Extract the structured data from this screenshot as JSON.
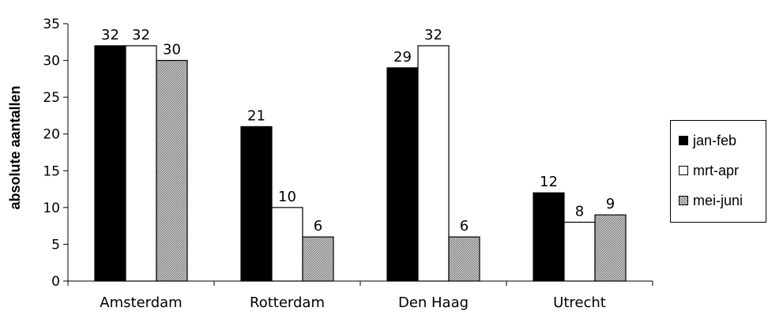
{
  "chart_data": {
    "type": "bar",
    "categories": [
      "Amsterdam",
      "Rotterdam",
      "Den Haag",
      "Utrecht"
    ],
    "series": [
      {
        "name": "jan-feb",
        "values": [
          32,
          21,
          29,
          12
        ],
        "fill": "#000000",
        "pattern": "solid"
      },
      {
        "name": "mrt-apr",
        "values": [
          32,
          10,
          32,
          8
        ],
        "fill": "#ffffff",
        "pattern": "solid"
      },
      {
        "name": "mei-juni",
        "values": [
          30,
          6,
          6,
          9
        ],
        "fill": "#c8c8c8",
        "pattern": "hatch"
      }
    ],
    "title": "",
    "xlabel": "",
    "ylabel": "absolute aantallen",
    "ylim": [
      0,
      35
    ],
    "yticks": [
      "0",
      "5",
      "10",
      "15",
      "20",
      "25",
      "30",
      "35"
    ],
    "grid": false,
    "legend_position": "right"
  }
}
